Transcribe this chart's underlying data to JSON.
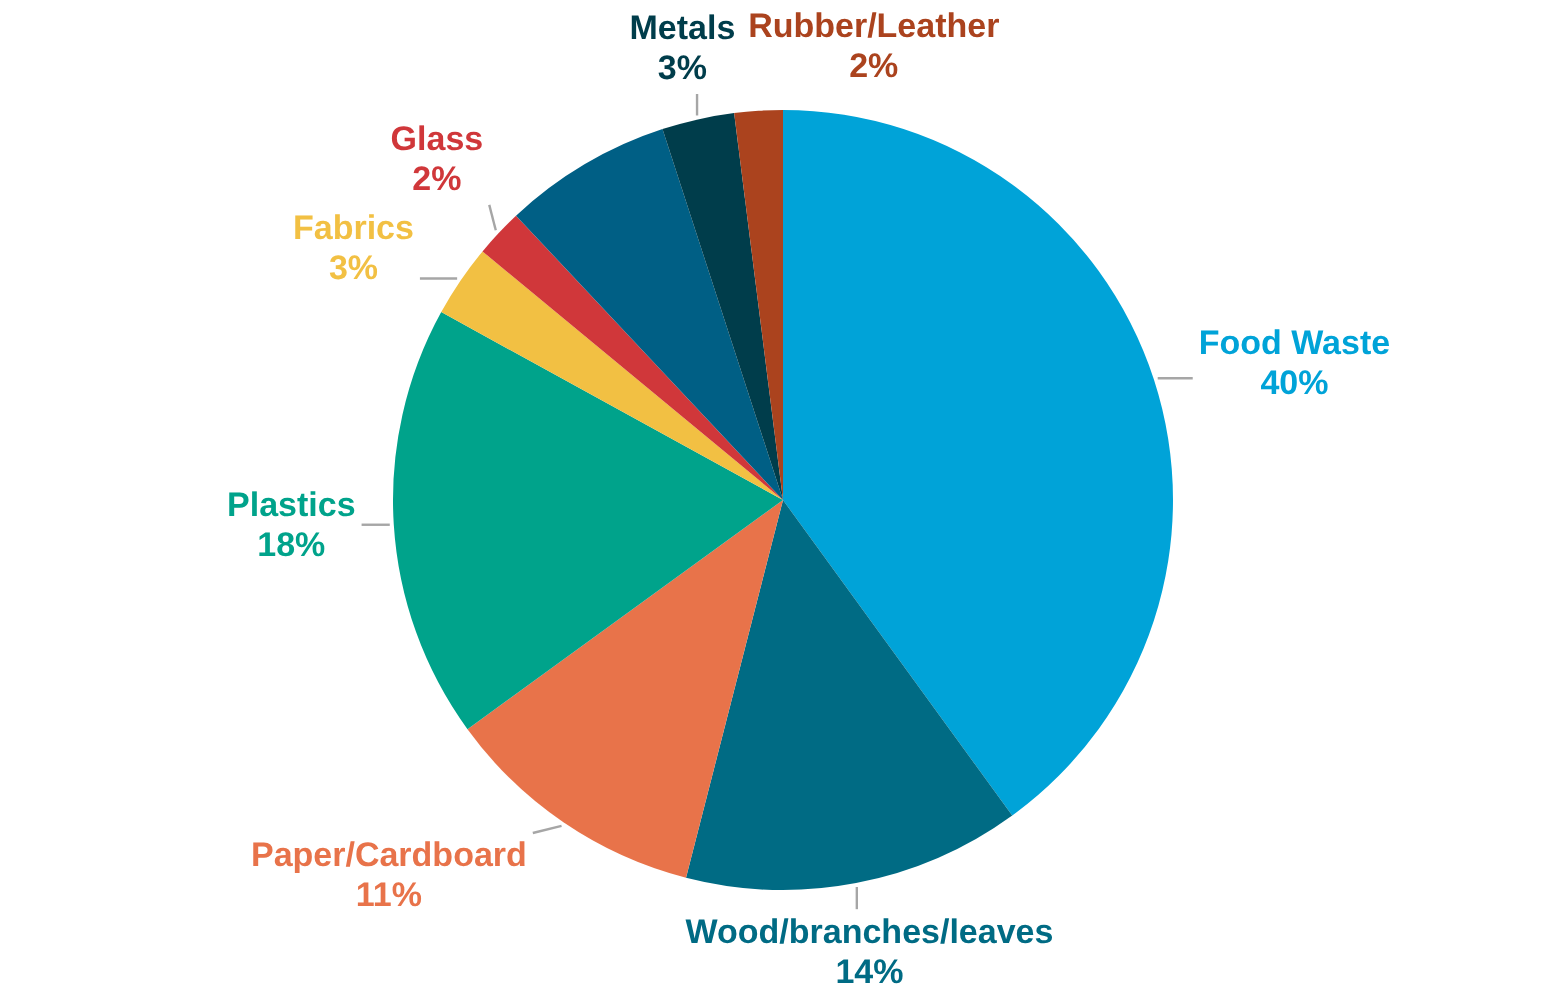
{
  "chart_data": {
    "type": "pie",
    "categories": [
      "Food Waste",
      "Wood/branches/leaves",
      "Paper/Cardboard",
      "Plastics",
      "Fabrics",
      "Glass",
      null,
      "Metals",
      "Rubber/Leather"
    ],
    "values": [
      40,
      14,
      11,
      18,
      3,
      2,
      7,
      3,
      2
    ],
    "value_labels": [
      "40%",
      "14%",
      "11%",
      "18%",
      "3%",
      "2%",
      null,
      "3%",
      "2%"
    ],
    "colors": [
      "#00a3d8",
      "#006b84",
      "#e8734a",
      "#00a38b",
      "#f2c043",
      "#d0373a",
      "#005f85",
      "#003d4b",
      "#ab431e"
    ],
    "legend": false
  }
}
